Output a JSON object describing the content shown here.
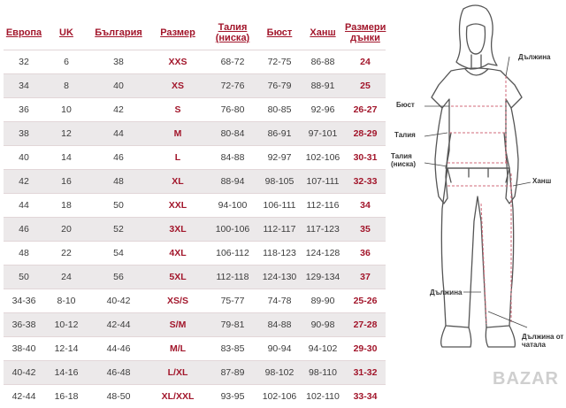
{
  "table": {
    "headers": [
      "Европа",
      "UK",
      "България",
      "Размер",
      "Талия (ниска)",
      "Бюст",
      "Ханш",
      "Размери дънки"
    ],
    "rows": [
      [
        "32",
        "6",
        "38",
        "XXS",
        "68-72",
        "72-75",
        "86-88",
        "24"
      ],
      [
        "34",
        "8",
        "40",
        "XS",
        "72-76",
        "76-79",
        "88-91",
        "25"
      ],
      [
        "36",
        "10",
        "42",
        "S",
        "76-80",
        "80-85",
        "92-96",
        "26-27"
      ],
      [
        "38",
        "12",
        "44",
        "M",
        "80-84",
        "86-91",
        "97-101",
        "28-29"
      ],
      [
        "40",
        "14",
        "46",
        "L",
        "84-88",
        "92-97",
        "102-106",
        "30-31"
      ],
      [
        "42",
        "16",
        "48",
        "XL",
        "88-94",
        "98-105",
        "107-111",
        "32-33"
      ],
      [
        "44",
        "18",
        "50",
        "XXL",
        "94-100",
        "106-111",
        "112-116",
        "34"
      ],
      [
        "46",
        "20",
        "52",
        "3XL",
        "100-106",
        "112-117",
        "117-123",
        "35"
      ],
      [
        "48",
        "22",
        "54",
        "4XL",
        "106-112",
        "118-123",
        "124-128",
        "36"
      ],
      [
        "50",
        "24",
        "56",
        "5XL",
        "112-118",
        "124-130",
        "129-134",
        "37"
      ],
      [
        "34-36",
        "8-10",
        "40-42",
        "XS/S",
        "75-77",
        "74-78",
        "89-90",
        "25-26"
      ],
      [
        "36-38",
        "10-12",
        "42-44",
        "S/M",
        "79-81",
        "84-88",
        "90-98",
        "27-28"
      ],
      [
        "38-40",
        "12-14",
        "44-46",
        "M/L",
        "83-85",
        "90-94",
        "94-102",
        "29-30"
      ],
      [
        "40-42",
        "14-16",
        "46-48",
        "L/XL",
        "87-89",
        "98-102",
        "98-110",
        "31-32"
      ],
      [
        "42-44",
        "16-18",
        "48-50",
        "XL/XXL",
        "93-95",
        "102-106",
        "102-110",
        "33-34"
      ]
    ]
  },
  "figure": {
    "labels": {
      "length_top": "Дължина",
      "bust": "Бюст",
      "waist": "Талия",
      "waist_low": "Талия (ниска)",
      "hips": "Ханш",
      "length_bottom": "Дължина",
      "inseam": "Дължина от чатала"
    }
  },
  "watermark": "BAZAR",
  "colors": {
    "accent": "#a2162b",
    "row_alt": "#ece9ea",
    "measure_line": "#d06a7a"
  }
}
